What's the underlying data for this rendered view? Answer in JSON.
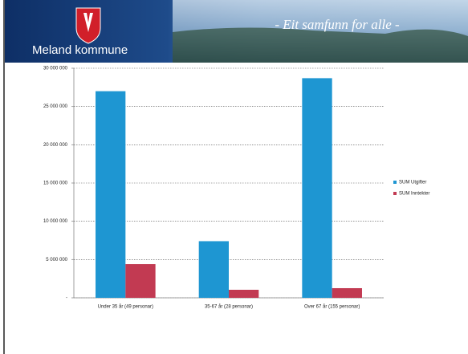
{
  "header": {
    "title": "Meland kommune",
    "slogan": "- Eit samfunn for alle -"
  },
  "chart_data": {
    "type": "bar",
    "categories": [
      "Under 35 år (49 personar)",
      "35-67 år (28 personar)",
      "Over 67 år (155 personar)"
    ],
    "series": [
      {
        "name": "SUM Utgifter",
        "color": "#1e96d2",
        "values": [
          27000000,
          7400000,
          28700000
        ]
      },
      {
        "name": "SUM Inntekter",
        "color": "#c23a52",
        "values": [
          4400000,
          1050000,
          1260000
        ]
      }
    ],
    "ylim": [
      0,
      30000000
    ],
    "yticks": [
      {
        "value": 0,
        "label": "-"
      },
      {
        "value": 5000000,
        "label": "5 000 000"
      },
      {
        "value": 10000000,
        "label": "10 000 000"
      },
      {
        "value": 15000000,
        "label": "15 000 000"
      },
      {
        "value": 20000000,
        "label": "20 000 000"
      },
      {
        "value": 25000000,
        "label": "25 000 000"
      },
      {
        "value": 30000000,
        "label": "30 000 000"
      }
    ],
    "grid": true,
    "legend": "right"
  }
}
